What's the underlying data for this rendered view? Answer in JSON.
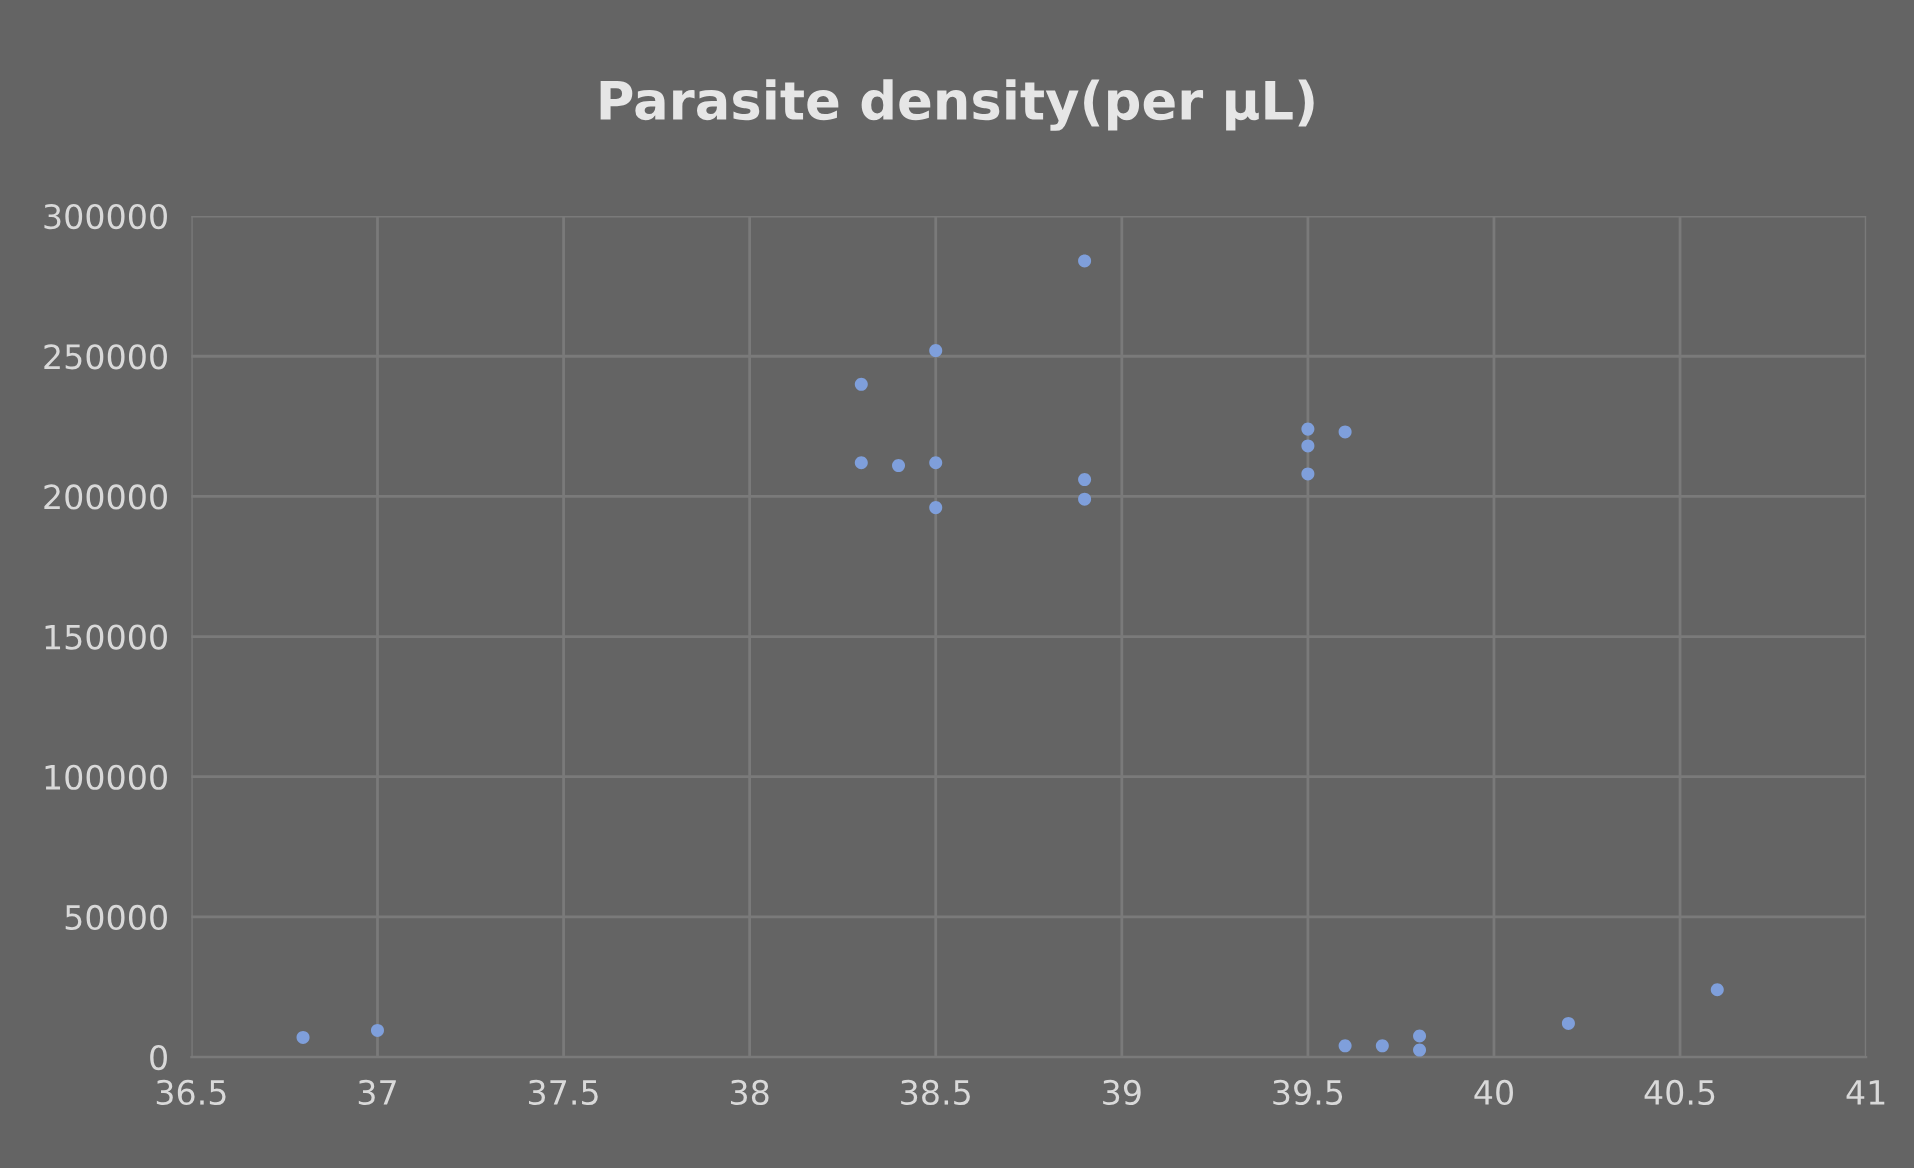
{
  "chart_data": {
    "type": "scatter",
    "title": "Parasite density(per µL)",
    "x": [
      36.8,
      37.0,
      38.3,
      38.3,
      38.4,
      38.5,
      38.5,
      38.5,
      38.9,
      38.9,
      38.9,
      39.5,
      39.5,
      39.5,
      39.6,
      39.6,
      39.7,
      39.8,
      39.8,
      40.2,
      40.6
    ],
    "values": [
      7000,
      9500,
      240000,
      212000,
      211000,
      252000,
      212000,
      196000,
      284000,
      206000,
      199000,
      224000,
      218000,
      208000,
      223000,
      4000,
      4000,
      2500,
      7500,
      12000,
      24000
    ],
    "color": "#7f9fdb",
    "marker": "circle",
    "xlim": [
      36.5,
      41
    ],
    "xticks": [
      36.5,
      37,
      37.5,
      38,
      38.5,
      39,
      39.5,
      40,
      40.5,
      41
    ],
    "ylim": [
      0,
      300000
    ],
    "yticks": [
      0,
      50000,
      100000,
      150000,
      200000,
      250000,
      300000
    ],
    "grid": true
  }
}
